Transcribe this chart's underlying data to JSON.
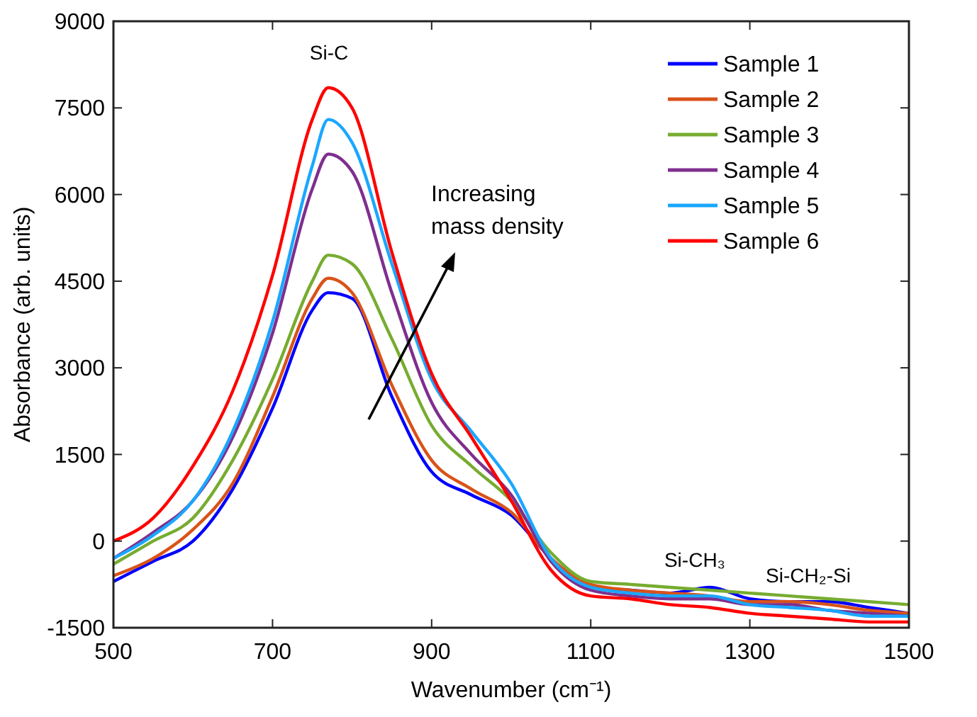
{
  "chart_data": {
    "type": "line",
    "xlabel": "Wavenumber (cm⁻¹)",
    "ylabel": "Absorbance (arb. units)",
    "x": [
      500,
      550,
      600,
      650,
      700,
      750,
      770,
      800,
      850,
      900,
      950,
      1000,
      1050,
      1100,
      1150,
      1200,
      1250,
      1300,
      1350,
      1400,
      1450,
      1500
    ],
    "xlim": [
      500,
      1500
    ],
    "xticks": [
      500,
      700,
      900,
      1100,
      1300,
      1500
    ],
    "ylim": [
      -1500,
      9000
    ],
    "yticks": [
      -1500,
      0,
      1500,
      3000,
      4500,
      6000,
      7500,
      9000
    ],
    "grid": false,
    "legend": "top right",
    "marker": "none",
    "line_style": "solid",
    "series": [
      {
        "name": "Sample 1",
        "color": "#0000ff",
        "values": [
          -700,
          -350,
          0,
          900,
          2300,
          4000,
          4300,
          4200,
          2500,
          1200,
          800,
          450,
          -300,
          -800,
          -850,
          -900,
          -800,
          -1000,
          -1050,
          -1050,
          -1150,
          -1250
        ]
      },
      {
        "name": "Sample 2",
        "color": "#d95319",
        "values": [
          -600,
          -300,
          200,
          1000,
          2500,
          4200,
          4550,
          4300,
          2700,
          1400,
          900,
          500,
          -300,
          -750,
          -850,
          -900,
          -950,
          -1050,
          -1050,
          -1100,
          -1200,
          -1250
        ]
      },
      {
        "name": "Sample 3",
        "color": "#77ac30",
        "values": [
          -400,
          0,
          400,
          1400,
          2800,
          4500,
          4950,
          4800,
          3500,
          2000,
          1300,
          700,
          -200,
          -700,
          -750,
          -800,
          -850,
          -900,
          -950,
          -1000,
          -1050,
          -1100
        ]
      },
      {
        "name": "Sample 4",
        "color": "#7e2f8e",
        "values": [
          -300,
          150,
          700,
          1800,
          3600,
          6100,
          6700,
          6400,
          4300,
          2400,
          1500,
          800,
          -350,
          -850,
          -950,
          -1000,
          -1000,
          -1100,
          -1100,
          -1200,
          -1250,
          -1300
        ]
      },
      {
        "name": "Sample 5",
        "color": "#1aa7ff",
        "values": [
          -300,
          100,
          700,
          1900,
          3800,
          6500,
          7300,
          6900,
          4800,
          2800,
          1900,
          1000,
          -300,
          -800,
          -900,
          -950,
          -950,
          -1100,
          -1150,
          -1200,
          -1300,
          -1300
        ]
      },
      {
        "name": "Sample 6",
        "color": "#ff0000",
        "values": [
          0,
          400,
          1300,
          2600,
          4600,
          7300,
          7850,
          7500,
          5000,
          2900,
          1800,
          700,
          -500,
          -950,
          -1000,
          -1100,
          -1150,
          -1250,
          -1300,
          -1350,
          -1400,
          -1400
        ]
      }
    ],
    "annotations": [
      "Si-C",
      "Increasing mass density",
      "Si-CH₃",
      "Si-CH₂-Si"
    ]
  }
}
